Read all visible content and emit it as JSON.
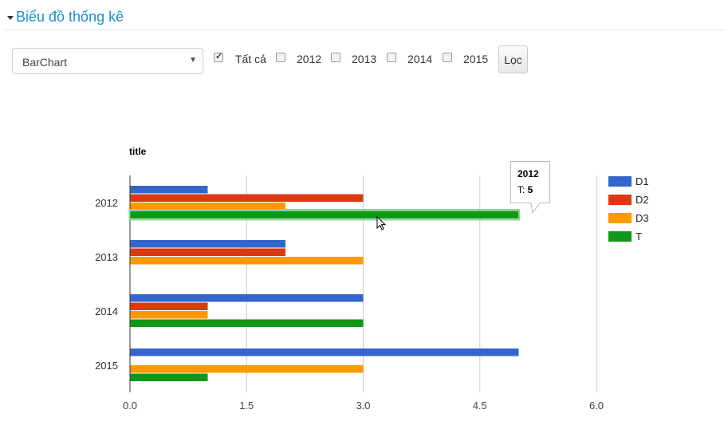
{
  "header": {
    "title": "Biểu đồ thống kê"
  },
  "filters": {
    "chart_type": "BarChart",
    "checkboxes": [
      {
        "label": "Tất cả",
        "checked": true
      },
      {
        "label": "2012",
        "checked": false
      },
      {
        "label": "2013",
        "checked": false
      },
      {
        "label": "2014",
        "checked": false
      },
      {
        "label": "2015",
        "checked": false
      }
    ],
    "filter_button": "Lọc"
  },
  "tooltip": {
    "title": "2012",
    "label": "T: ",
    "value": "5"
  },
  "chart_data": {
    "type": "bar",
    "orientation": "horizontal",
    "title": "title",
    "categories": [
      "2012",
      "2013",
      "2014",
      "2015"
    ],
    "series": [
      {
        "name": "D1",
        "color": "#3366cc",
        "values": [
          1,
          2,
          3,
          5
        ]
      },
      {
        "name": "D2",
        "color": "#dc3912",
        "values": [
          3,
          2,
          1,
          0
        ]
      },
      {
        "name": "D3",
        "color": "#ff9900",
        "values": [
          2,
          3,
          1,
          3
        ]
      },
      {
        "name": "T",
        "color": "#109618",
        "values": [
          5,
          0,
          3,
          1
        ]
      }
    ],
    "xlim": [
      0,
      6
    ],
    "xticks": [
      "0.0",
      "1.5",
      "3.0",
      "4.5",
      "6.0"
    ],
    "grid": true,
    "legend": "right"
  }
}
